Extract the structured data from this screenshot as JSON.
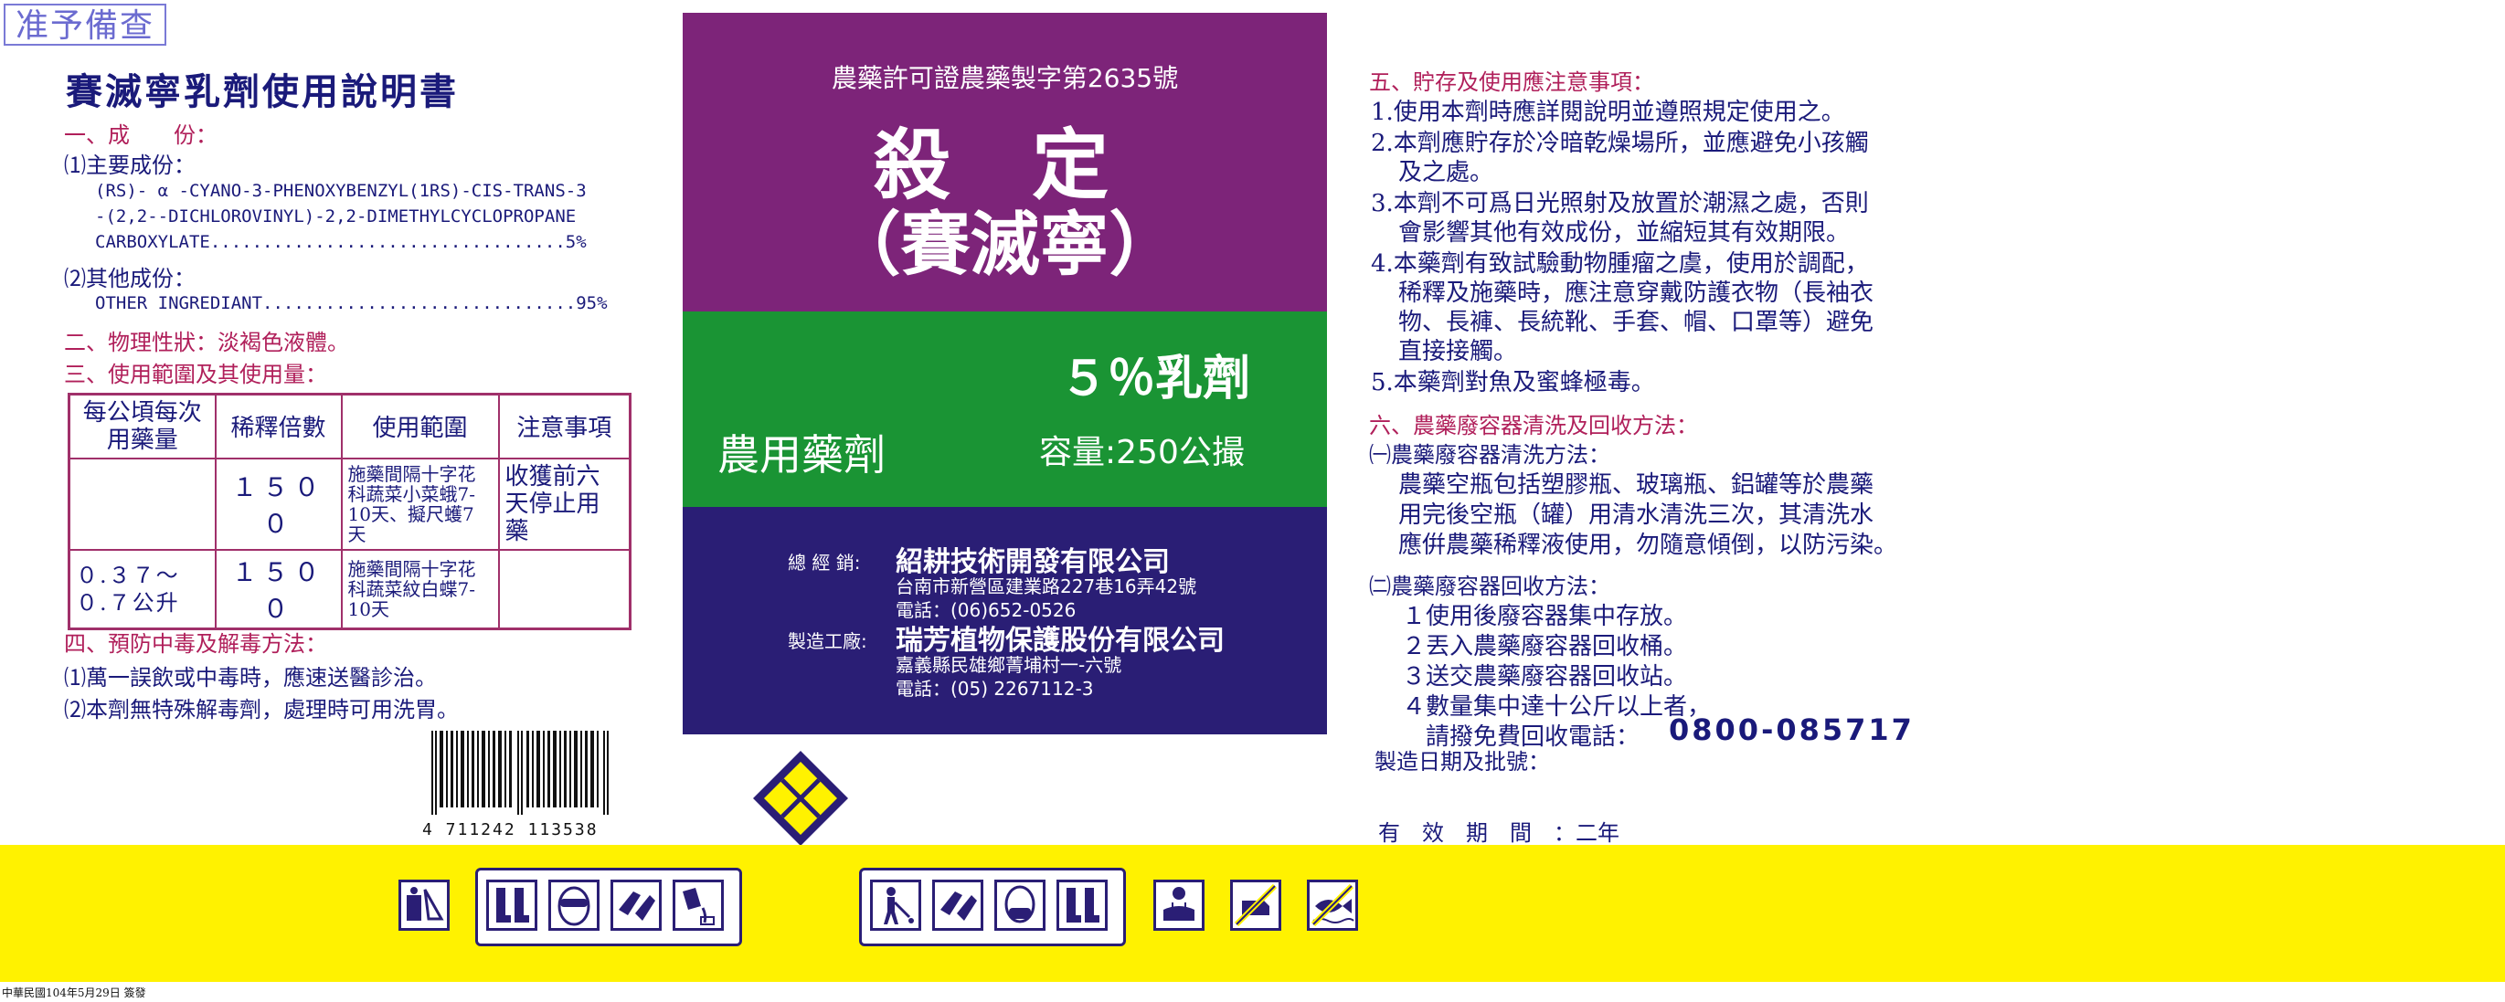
{
  "stamp": "准予備查",
  "left": {
    "title": "賽滅寧乳劑使用說明書",
    "s1": "一、成　　份：",
    "s1_main_label": "⑴主要成份：",
    "s1_main_l1": "(RS)- α -CYANO-3-PHENOXYBENZYL(1RS)-CIS-TRANS-3",
    "s1_main_l2": "-(2,2--DICHLOROVINYL)-2,2-DIMETHYLCYCLOPROPANE",
    "s1_main_l3": "CARBOXYLATE..................................5%",
    "s1_other_label": "⑵其他成份：",
    "s1_other_l1": "OTHER INGREDIANT..............................95%",
    "s2": "二、物理性狀：淡褐色液體。",
    "s3": "三、使用範圍及其使用量：",
    "table": {
      "h1": "每公頃每次用藥量",
      "h2": "稀釋倍數",
      "h3": "使用範圍",
      "h4": "注意事項",
      "r1c1": "",
      "r1c2": "１５００",
      "r1c3": "施藥間隔十字花科蔬菜小菜蛾7-10天、擬尺蠖7天",
      "r1c4": "收獲前六天停止用藥",
      "r2c1": "０.３７～０.７公升",
      "r2c2": "１５００",
      "r2c3": "施藥間隔十字花科蔬菜紋白蝶7-10天",
      "r2c4": ""
    },
    "s4": "四、預防中毒及解毒方法：",
    "s4_1": "⑴萬一誤飲或中毒時，應速送醫診治。",
    "s4_2": "⑵本劑無特殊解毒劑，處理時可用洗胃。",
    "barcode": "4 711242 113538"
  },
  "center": {
    "permit": "農藥許可證農藥製字第2635號",
    "name": "殺 定",
    "name2": "（賽滅寧）",
    "formulation": "５％乳劑",
    "category": "農用藥劑",
    "volume": "容量:250公撮",
    "dist_label": "總 經 銷:",
    "dist_name": "紹耕技術開發有限公司",
    "dist_addr": "台南市新營區建業路227巷16弄42號",
    "dist_tel": "電話：(06)652-0526",
    "mfr_label": "製造工廠:",
    "mfr_name": "瑞芳植物保護股份有限公司",
    "mfr_addr": "嘉義縣民雄鄉菁埔村一-六號",
    "mfr_tel": "電話：(05) 2267112-3"
  },
  "right": {
    "s5": "五、貯存及使用應注意事項：",
    "s5_1": "1.使用本劑時應詳閱說明並遵照規定使用之。",
    "s5_2a": "2.本劑應貯存於冷暗乾燥場所，並應避免小孩觸",
    "s5_2b": "及之處。",
    "s5_3a": "3.本劑不可爲日光照射及放置於潮濕之處，否則",
    "s5_3b": "會影響其他有效成份，並縮短其有效期限。",
    "s5_4a": "4.本藥劑有致試驗動物腫瘤之虞，使用於調配，",
    "s5_4b": "稀釋及施藥時，應注意穿戴防護衣物（長袖衣",
    "s5_4c": "物、長褲、長統靴、手套、帽、口罩等）避免",
    "s5_4d": "直接接觸。",
    "s5_5": "5.本藥劑對魚及蜜蜂極毒。",
    "s6": "六、農藥廢容器清洗及回收方法：",
    "s6_1": "㈠農藥廢容器清洗方法：",
    "s6_1a": "農藥空瓶包括塑膠瓶、玻璃瓶、鋁罐等於農藥",
    "s6_1b": "用完後空瓶（罐）用清水清洗三次，其清洗水",
    "s6_1c": "應倂農藥稀釋液使用，勿隨意傾倒，以防污染。",
    "s6_2": "㈡農藥廢容器回收方法：",
    "s6_2a": "１使用後廢容器集中存放。",
    "s6_2b": "２丟入農藥廢容器回收桶。",
    "s6_2c": "３送交農藥廢容器回收站。",
    "s6_2d": "４數量集中達十公斤以上者，",
    "s6_2e": "請撥免費回收電話：",
    "phone": "0800-085717",
    "mfg": "製造日期及批號：",
    "validity": "有　效　期　間　：二年"
  },
  "footnote": "中華民國104年5月29日 簽發",
  "colors": {
    "purple": "#7d2479",
    "green": "#1a9434",
    "navy": "#2a1e75",
    "yellow": "#fff200",
    "accent": "#b01f5a"
  },
  "icons": [
    "mixing-icon",
    "boots-icon",
    "goggles-icon",
    "gloves-icon",
    "pouring-icon",
    "spraying-icon",
    "gloves-icon",
    "mask-icon",
    "boots-icon",
    "washing-icon",
    "no-livestock-icon",
    "no-fish-icon"
  ]
}
